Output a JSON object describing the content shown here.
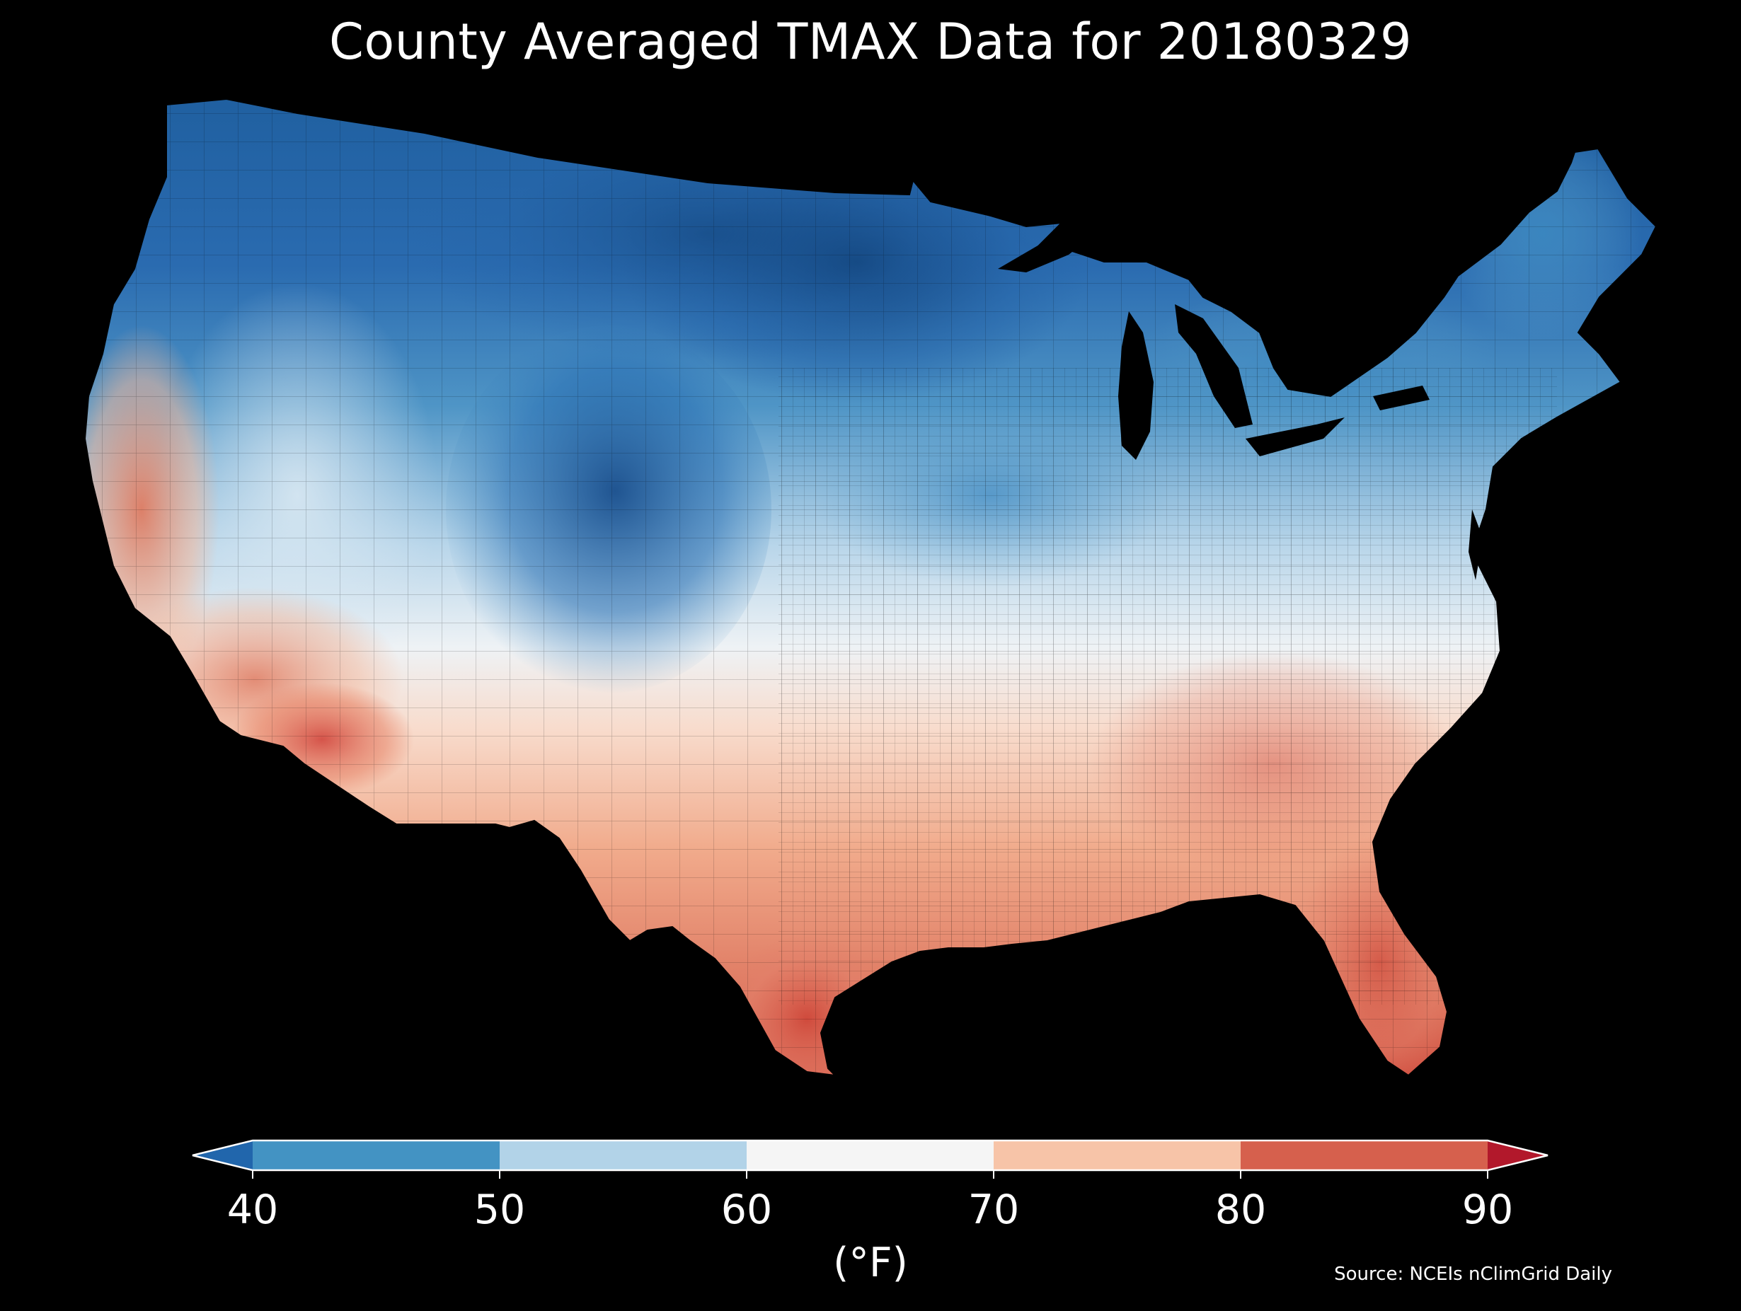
{
  "title": "County Averaged TMAX Data for 20180329",
  "colorbar": {
    "unit_label": "(°F)",
    "ticks": [
      "40",
      "50",
      "60",
      "70",
      "80",
      "90"
    ],
    "bins": [
      {
        "range": "<40",
        "color": "#2166ac"
      },
      {
        "range": "40-50",
        "color": "#4393c3"
      },
      {
        "range": "50-60",
        "color": "#b2d3e8"
      },
      {
        "range": "60-70",
        "color": "#f5f5f5"
      },
      {
        "range": "70-80",
        "color": "#f7c4a8"
      },
      {
        "range": "80-90",
        "color": "#d6604d"
      },
      {
        "range": ">90",
        "color": "#b2182b"
      }
    ]
  },
  "source": "Source: NCEIs nClimGrid Daily"
}
